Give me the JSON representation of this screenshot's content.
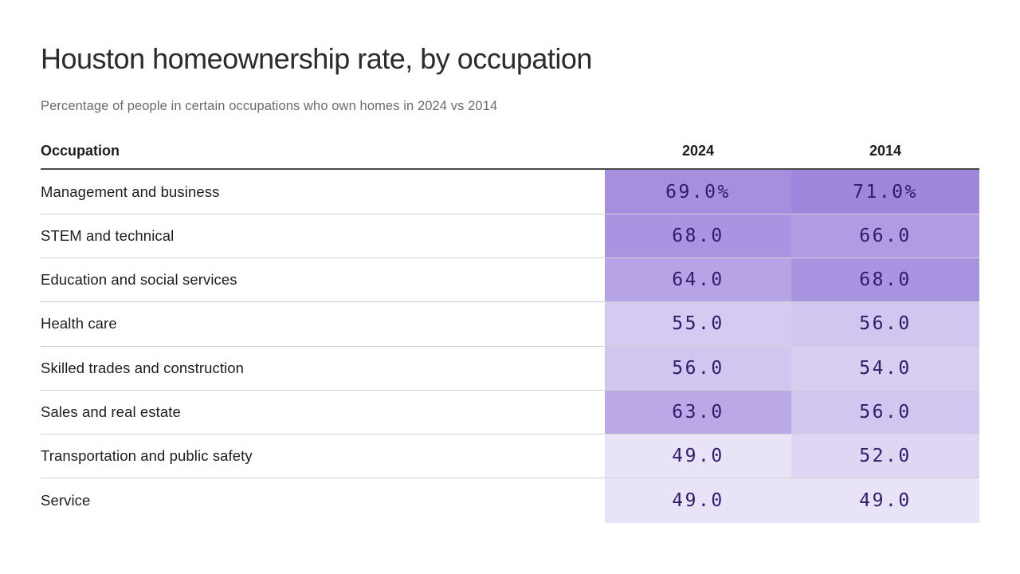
{
  "title": "Houston homeownership rate, by occupation",
  "subtitle": "Percentage of people in certain occupations who own homes in 2024 vs 2014",
  "colors": {
    "title_text": "#2b2b2b",
    "subtitle_text": "#6b6b6b",
    "header_text": "#1d1d1d",
    "header_rule": "#4a4a4a",
    "value_text": "#2f1c6b",
    "scale_min_color": "#e9e3f8",
    "scale_max_color": "#9f87dd"
  },
  "chart_data": {
    "type": "heatmap",
    "title": "Houston homeownership rate, by occupation",
    "subtitle": "Percentage of people in certain occupations who own homes in 2024 vs 2014",
    "row_label_header": "Occupation",
    "columns": [
      "2024",
      "2014"
    ],
    "unit": "%",
    "rows": [
      {
        "label": "Management and business",
        "values": [
          69.0,
          71.0
        ],
        "display": [
          "69.0%",
          "71.0%"
        ]
      },
      {
        "label": "STEM and technical",
        "values": [
          68.0,
          66.0
        ],
        "display": [
          "68.0",
          "66.0"
        ]
      },
      {
        "label": "Education and social services",
        "values": [
          64.0,
          68.0
        ],
        "display": [
          "64.0",
          "68.0"
        ]
      },
      {
        "label": "Health care",
        "values": [
          55.0,
          56.0
        ],
        "display": [
          "55.0",
          "56.0"
        ]
      },
      {
        "label": "Skilled trades and construction",
        "values": [
          56.0,
          54.0
        ],
        "display": [
          "56.0",
          "54.0"
        ]
      },
      {
        "label": "Sales and real estate",
        "values": [
          63.0,
          56.0
        ],
        "display": [
          "63.0",
          "56.0"
        ]
      },
      {
        "label": "Transportation and public safety",
        "values": [
          49.0,
          52.0
        ],
        "display": [
          "49.0",
          "52.0"
        ]
      },
      {
        "label": "Service",
        "values": [
          49.0,
          49.0
        ],
        "display": [
          "49.0",
          "49.0"
        ]
      }
    ],
    "color_scale": {
      "min_value": 49,
      "max_value": 71,
      "min_color": "#e9e3f8",
      "max_color": "#9f87dd"
    },
    "legend_position": "none",
    "grid": "row-dividers"
  }
}
